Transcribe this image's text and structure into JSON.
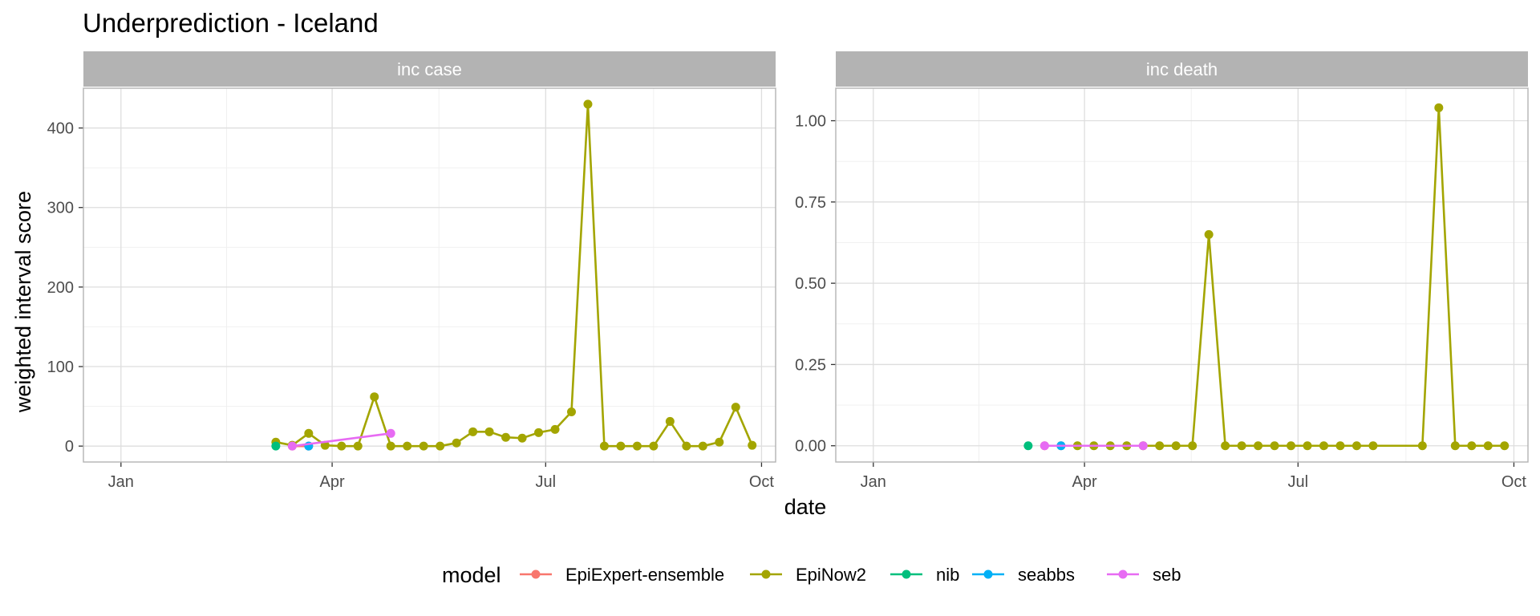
{
  "chart_data": {
    "type": "line",
    "title": "Underprediction - Iceland",
    "xlabel": "date",
    "ylabel": "weighted interval score",
    "legend": {
      "title": "model",
      "position": "bottom"
    },
    "x_ticks": [
      "Jan",
      "Apr",
      "Jul",
      "Oct"
    ],
    "x_tick_dates": [
      "2021-01-01",
      "2021-04-01",
      "2021-07-01",
      "2021-10-01"
    ],
    "xlim": [
      "2020-12-16",
      "2021-10-07"
    ],
    "models": [
      {
        "name": "EpiExpert-ensemble",
        "color": "#F8766D"
      },
      {
        "name": "EpiNow2",
        "color": "#A3A500"
      },
      {
        "name": "nib",
        "color": "#00BF7D"
      },
      {
        "name": "seabbs",
        "color": "#00B0F6"
      },
      {
        "name": "seb",
        "color": "#E76BF3"
      }
    ],
    "panels": [
      {
        "label": "inc case",
        "ylim": [
          -20,
          450
        ],
        "y_ticks": [
          0,
          100,
          200,
          300,
          400
        ],
        "y_tick_labels": [
          "0",
          "100",
          "200",
          "300",
          "400"
        ],
        "series": [
          {
            "name": "EpiNow2",
            "points": [
              [
                "2021-03-08",
                5
              ],
              [
                "2021-03-15",
                1
              ],
              [
                "2021-03-22",
                16
              ],
              [
                "2021-03-29",
                1
              ],
              [
                "2021-04-05",
                0
              ],
              [
                "2021-04-12",
                0
              ],
              [
                "2021-04-19",
                62
              ],
              [
                "2021-04-26",
                0
              ],
              [
                "2021-05-03",
                0
              ],
              [
                "2021-05-10",
                0
              ],
              [
                "2021-05-17",
                0
              ],
              [
                "2021-05-24",
                4
              ],
              [
                "2021-05-31",
                18
              ],
              [
                "2021-06-07",
                18
              ],
              [
                "2021-06-14",
                11
              ],
              [
                "2021-06-21",
                10
              ],
              [
                "2021-06-28",
                17
              ],
              [
                "2021-07-05",
                21
              ],
              [
                "2021-07-12",
                43
              ],
              [
                "2021-07-19",
                430
              ],
              [
                "2021-07-26",
                0
              ],
              [
                "2021-08-02",
                0
              ],
              [
                "2021-08-09",
                0
              ],
              [
                "2021-08-16",
                0
              ],
              [
                "2021-08-23",
                31
              ],
              [
                "2021-08-30",
                0
              ],
              [
                "2021-09-06",
                0
              ],
              [
                "2021-09-13",
                5
              ],
              [
                "2021-09-20",
                49
              ],
              [
                "2021-09-27",
                1
              ]
            ]
          },
          {
            "name": "EpiExpert-ensemble",
            "points": [
              [
                "2021-03-15",
                0
              ],
              [
                "2021-03-22",
                0
              ]
            ]
          },
          {
            "name": "nib",
            "points": [
              [
                "2021-03-08",
                0
              ]
            ]
          },
          {
            "name": "seabbs",
            "points": [
              [
                "2021-03-22",
                0
              ]
            ]
          },
          {
            "name": "seb",
            "points": [
              [
                "2021-03-15",
                0
              ],
              [
                "2021-04-26",
                16
              ]
            ]
          }
        ]
      },
      {
        "label": "inc death",
        "ylim": [
          -0.05,
          1.1
        ],
        "y_ticks": [
          0,
          0.25,
          0.5,
          0.75,
          1.0
        ],
        "y_tick_labels": [
          "0.00",
          "0.25",
          "0.50",
          "0.75",
          "1.00"
        ],
        "series": [
          {
            "name": "EpiNow2",
            "points": [
              [
                "2021-03-29",
                0
              ],
              [
                "2021-04-05",
                0
              ],
              [
                "2021-04-12",
                0
              ],
              [
                "2021-04-19",
                0
              ],
              [
                "2021-04-26",
                0
              ],
              [
                "2021-05-03",
                0
              ],
              [
                "2021-05-10",
                0
              ],
              [
                "2021-05-17",
                0
              ],
              [
                "2021-05-24",
                0.65
              ],
              [
                "2021-05-31",
                0
              ],
              [
                "2021-06-07",
                0
              ],
              [
                "2021-06-14",
                0
              ],
              [
                "2021-06-21",
                0
              ],
              [
                "2021-06-28",
                0
              ],
              [
                "2021-07-05",
                0
              ],
              [
                "2021-07-12",
                0
              ],
              [
                "2021-07-19",
                0
              ],
              [
                "2021-07-26",
                0
              ],
              [
                "2021-08-02",
                0
              ],
              [
                "2021-08-23",
                0
              ],
              [
                "2021-08-30",
                1.04
              ],
              [
                "2021-09-06",
                0
              ],
              [
                "2021-09-13",
                0
              ],
              [
                "2021-09-20",
                0
              ],
              [
                "2021-09-27",
                0
              ]
            ]
          },
          {
            "name": "EpiExpert-ensemble",
            "points": [
              [
                "2021-03-15",
                0
              ],
              [
                "2021-03-22",
                0
              ]
            ]
          },
          {
            "name": "nib",
            "points": [
              [
                "2021-03-08",
                0
              ]
            ]
          },
          {
            "name": "seabbs",
            "points": [
              [
                "2021-03-22",
                0
              ]
            ]
          },
          {
            "name": "seb",
            "points": [
              [
                "2021-03-15",
                0
              ],
              [
                "2021-04-26",
                0
              ]
            ]
          }
        ]
      }
    ]
  }
}
